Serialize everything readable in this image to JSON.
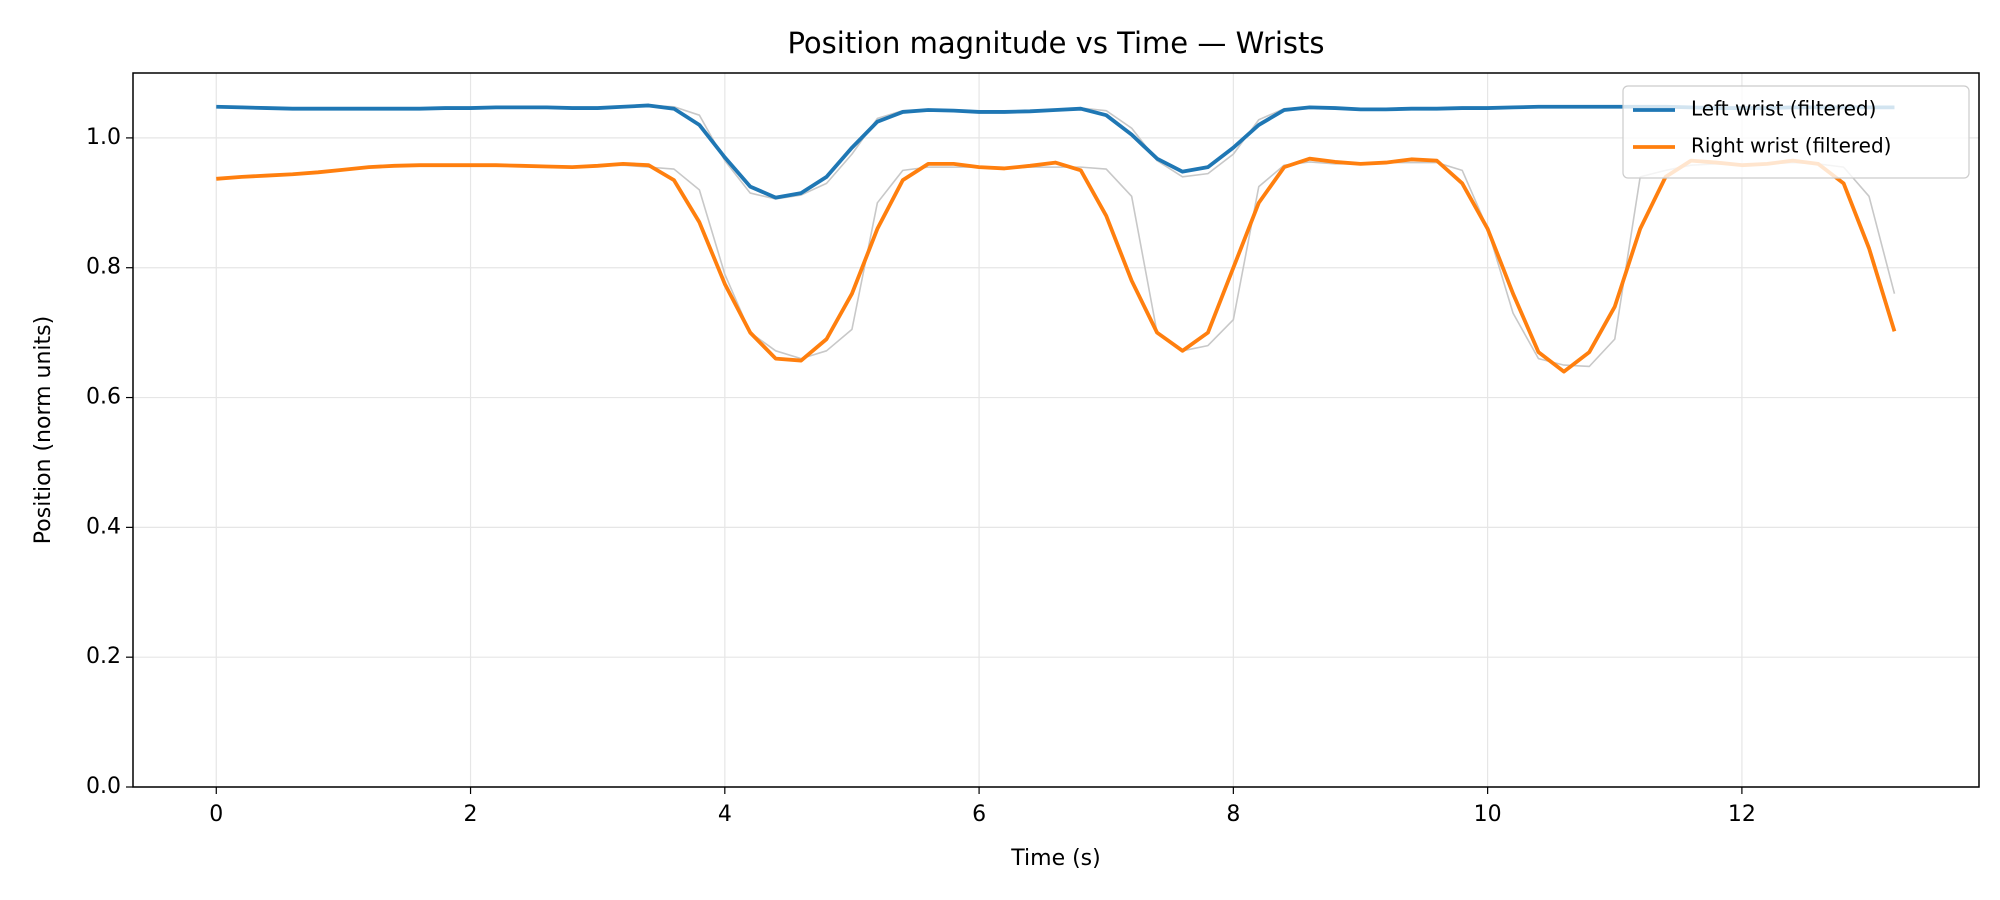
{
  "chart_data": {
    "type": "line",
    "title": "Position magnitude vs Time — Wrists",
    "x_label": "Time (s)",
    "y_label": "Position (norm units)",
    "x": [
      0,
      0.2,
      0.4,
      0.6,
      0.8,
      1.0,
      1.2,
      1.4,
      1.6,
      1.8,
      2.0,
      2.2,
      2.4,
      2.6,
      2.8,
      3.0,
      3.2,
      3.4,
      3.6,
      3.8,
      4.0,
      4.2,
      4.4,
      4.6,
      4.8,
      5.0,
      5.2,
      5.4,
      5.6,
      5.8,
      6.0,
      6.2,
      6.4,
      6.6,
      6.8,
      7.0,
      7.2,
      7.4,
      7.6,
      7.8,
      8.0,
      8.2,
      8.4,
      8.6,
      8.8,
      9.0,
      9.2,
      9.4,
      9.6,
      9.8,
      10.0,
      10.2,
      10.4,
      10.6,
      10.8,
      11.0,
      11.2,
      11.4,
      11.6,
      11.8,
      12.0,
      12.2,
      12.4,
      12.6,
      12.8,
      13.0,
      13.2
    ],
    "series": [
      {
        "color": "#c8c8c8",
        "values": [
          1.048,
          1.047,
          1.046,
          1.045,
          1.045,
          1.045,
          1.045,
          1.045,
          1.045,
          1.046,
          1.046,
          1.047,
          1.047,
          1.047,
          1.046,
          1.046,
          1.048,
          1.05,
          1.048,
          1.035,
          0.965,
          0.915,
          0.906,
          0.912,
          0.93,
          0.975,
          1.03,
          1.042,
          1.043,
          1.042,
          1.04,
          1.04,
          1.041,
          1.043,
          1.046,
          1.042,
          1.015,
          0.965,
          0.94,
          0.945,
          0.975,
          1.028,
          1.045,
          1.047,
          1.046,
          1.044,
          1.044,
          1.045,
          1.045,
          1.046,
          1.046,
          1.047,
          1.048,
          1.048,
          1.048,
          1.048,
          1.048,
          1.048,
          1.047,
          1.046,
          1.046,
          1.046,
          1.047,
          1.047,
          1.047,
          1.047,
          1.047
        ]
      },
      {
        "color": "#c8c8c8",
        "values": [
          0.937,
          0.94,
          0.942,
          0.944,
          0.947,
          0.951,
          0.955,
          0.957,
          0.958,
          0.958,
          0.958,
          0.958,
          0.957,
          0.956,
          0.955,
          0.957,
          0.958,
          0.955,
          0.952,
          0.92,
          0.79,
          0.7,
          0.672,
          0.66,
          0.672,
          0.705,
          0.9,
          0.95,
          0.955,
          0.955,
          0.955,
          0.953,
          0.955,
          0.955,
          0.955,
          0.952,
          0.91,
          0.7,
          0.672,
          0.68,
          0.72,
          0.925,
          0.958,
          0.963,
          0.96,
          0.96,
          0.962,
          0.962,
          0.962,
          0.95,
          0.86,
          0.73,
          0.66,
          0.65,
          0.648,
          0.69,
          0.94,
          0.95,
          0.958,
          0.96,
          0.958,
          0.96,
          0.962,
          0.96,
          0.955,
          0.91,
          0.76
        ]
      },
      {
        "name": "Left wrist (filtered)",
        "color": "#1f77b4",
        "values": [
          1.048,
          1.047,
          1.046,
          1.045,
          1.045,
          1.045,
          1.045,
          1.045,
          1.045,
          1.046,
          1.046,
          1.047,
          1.047,
          1.047,
          1.046,
          1.046,
          1.048,
          1.05,
          1.045,
          1.02,
          0.97,
          0.925,
          0.908,
          0.915,
          0.94,
          0.985,
          1.025,
          1.04,
          1.043,
          1.042,
          1.04,
          1.04,
          1.041,
          1.043,
          1.045,
          1.035,
          1.005,
          0.968,
          0.948,
          0.955,
          0.985,
          1.02,
          1.043,
          1.047,
          1.046,
          1.044,
          1.044,
          1.045,
          1.045,
          1.046,
          1.046,
          1.047,
          1.048,
          1.048,
          1.048,
          1.048,
          1.048,
          1.048,
          1.047,
          1.046,
          1.046,
          1.046,
          1.047,
          1.047,
          1.047,
          1.047,
          1.047
        ]
      },
      {
        "name": "Right wrist (filtered)",
        "color": "#ff7f0e",
        "values": [
          0.937,
          0.94,
          0.942,
          0.944,
          0.947,
          0.951,
          0.955,
          0.957,
          0.958,
          0.958,
          0.958,
          0.958,
          0.957,
          0.956,
          0.955,
          0.957,
          0.96,
          0.958,
          0.935,
          0.87,
          0.775,
          0.7,
          0.66,
          0.657,
          0.69,
          0.76,
          0.86,
          0.935,
          0.96,
          0.96,
          0.955,
          0.953,
          0.957,
          0.962,
          0.95,
          0.88,
          0.78,
          0.7,
          0.672,
          0.7,
          0.8,
          0.9,
          0.955,
          0.968,
          0.963,
          0.96,
          0.962,
          0.967,
          0.965,
          0.93,
          0.86,
          0.76,
          0.67,
          0.64,
          0.67,
          0.74,
          0.86,
          0.94,
          0.965,
          0.962,
          0.958,
          0.96,
          0.965,
          0.96,
          0.93,
          0.83,
          0.702
        ]
      }
    ],
    "xlim": [
      -0.655,
      13.865
    ],
    "ylim": [
      0,
      1.1
    ],
    "xticks": [
      0,
      2,
      4,
      6,
      8,
      10,
      12
    ],
    "yticks": [
      {
        "value": 0,
        "label": "0.0"
      },
      0.2,
      0.4,
      0.6,
      0.8,
      {
        "value": 1,
        "label": "1.0"
      }
    ],
    "grid": true,
    "legend": "upper right"
  }
}
